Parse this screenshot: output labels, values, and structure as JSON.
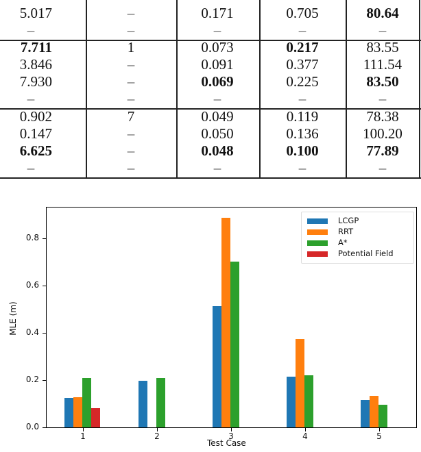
{
  "table": {
    "rows": [
      {
        "c0": "5.017",
        "c1": "–",
        "c2": "0.171",
        "c3": "0.705",
        "c4": "80.64",
        "bold": [
          false,
          false,
          false,
          false,
          true
        ]
      },
      {
        "c0": "–",
        "c1": "–",
        "c2": "–",
        "c3": "–",
        "c4": "–",
        "bold": [
          false,
          false,
          false,
          false,
          false
        ]
      },
      {
        "c0": "7.711",
        "c1": "1",
        "c2": "0.073",
        "c3": "0.217",
        "c4": "83.55",
        "bold": [
          true,
          false,
          false,
          true,
          false
        ]
      },
      {
        "c0": "3.846",
        "c1": "–",
        "c2": "0.091",
        "c3": "0.377",
        "c4": "111.54",
        "bold": [
          false,
          false,
          false,
          false,
          false
        ]
      },
      {
        "c0": "7.930",
        "c1": "–",
        "c2": "0.069",
        "c3": "0.225",
        "c4": "83.50",
        "bold": [
          false,
          false,
          true,
          false,
          true
        ]
      },
      {
        "c0": "–",
        "c1": "–",
        "c2": "–",
        "c3": "–",
        "c4": "–",
        "bold": [
          false,
          false,
          false,
          false,
          false
        ]
      },
      {
        "c0": "0.902",
        "c1": "7",
        "c2": "0.049",
        "c3": "0.119",
        "c4": "78.38",
        "bold": [
          false,
          false,
          false,
          false,
          false
        ]
      },
      {
        "c0": "0.147",
        "c1": "–",
        "c2": "0.050",
        "c3": "0.136",
        "c4": "100.20",
        "bold": [
          false,
          false,
          false,
          false,
          false
        ]
      },
      {
        "c0": "6.625",
        "c1": "–",
        "c2": "0.048",
        "c3": "0.100",
        "c4": "77.89",
        "bold": [
          true,
          false,
          true,
          true,
          true
        ]
      },
      {
        "c0": "–",
        "c1": "–",
        "c2": "–",
        "c3": "–",
        "c4": "–",
        "bold": [
          false,
          false,
          false,
          false,
          false
        ]
      }
    ]
  },
  "chart_data": {
    "type": "bar",
    "title": "",
    "xlabel": "Test Case",
    "ylabel": "MLE (m)",
    "categories": [
      "1",
      "2",
      "3",
      "4",
      "5"
    ],
    "ylim": [
      0,
      0.93
    ],
    "yticks": [
      "0.0",
      "0.2",
      "0.4",
      "0.6",
      "0.8"
    ],
    "grid": false,
    "legend_position": "upper right",
    "series": [
      {
        "name": "LCGP",
        "color": "#1f77b4",
        "values": [
          0.125,
          0.197,
          0.513,
          0.215,
          0.116
        ]
      },
      {
        "name": "RRT",
        "color": "#ff7f0e",
        "values": [
          0.128,
          null,
          0.887,
          0.374,
          0.133
        ]
      },
      {
        "name": "A*",
        "color": "#2ca02c",
        "values": [
          0.209,
          0.209,
          0.701,
          0.22,
          0.096
        ]
      },
      {
        "name": "Potential Field",
        "color": "#d62728",
        "values": [
          0.081,
          null,
          null,
          null,
          null
        ]
      }
    ]
  }
}
